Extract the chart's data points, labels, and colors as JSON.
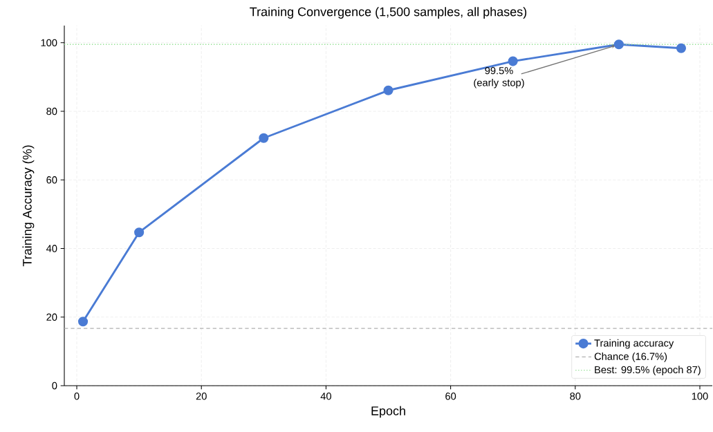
{
  "chart_data": {
    "type": "line",
    "title": "Training Convergence (1,500 samples, all phases)",
    "xlabel": "Epoch",
    "ylabel": "Training Accuracy (%)",
    "x": [
      1,
      10,
      30,
      50,
      70,
      87,
      97
    ],
    "series": [
      {
        "name": "Training accuracy",
        "color": "#4a7bd4",
        "values": [
          18.7,
          44.7,
          72.2,
          86.1,
          94.6,
          99.5,
          98.4
        ]
      }
    ],
    "xlim": [
      -2,
      102
    ],
    "ylim": [
      0,
      105
    ],
    "xticks": [
      0,
      20,
      40,
      60,
      80,
      100
    ],
    "yticks": [
      0,
      20,
      40,
      60,
      80,
      100
    ],
    "ref_lines": [
      {
        "axis": "y",
        "value": 16.7,
        "label": "Chance (16.7%)",
        "color": "#b0b0b0",
        "line_style": "dashed"
      },
      {
        "axis": "y",
        "value": 99.5,
        "label": "Best: 99.5% (epoch 87)",
        "color": "#90e090",
        "line_style": "dotted"
      }
    ],
    "annotations": [
      {
        "text": "99.5% (early stop)",
        "x": 87,
        "y": 99.5
      }
    ],
    "grid": true,
    "legend": "bottom right",
    "marker": "circle",
    "line_style": "solid"
  }
}
